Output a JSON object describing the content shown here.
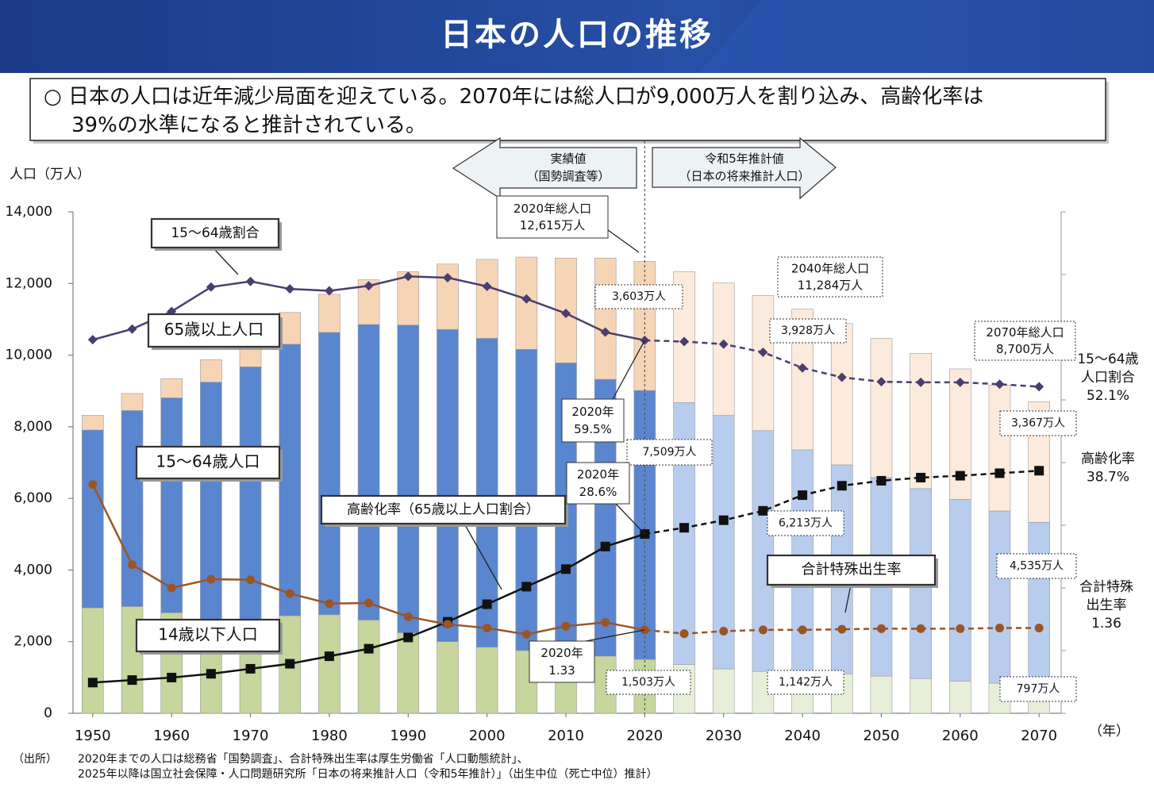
{
  "chart_data": {
    "type": "bar",
    "title": "日本の人口の推移",
    "subtitle": "○ 日本の人口は近年減少局面を迎えている。2070年には総人口が9,000万人を割り込み、高齢化率は\n39%の水準になると推計されている。",
    "y_label": "人口（万人）",
    "x_label": "（年）",
    "x": [
      1950,
      1955,
      1960,
      1965,
      1970,
      1975,
      1980,
      1985,
      1990,
      1995,
      2000,
      2005,
      2010,
      2015,
      2020,
      2025,
      2030,
      2035,
      2040,
      2045,
      2050,
      2055,
      2060,
      2065,
      2070
    ],
    "xlim": [
      1947.5,
      2072.8
    ],
    "xticks": [
      1950,
      1960,
      1970,
      1980,
      1990,
      2000,
      2010,
      2020,
      2030,
      2040,
      2050,
      2060,
      2070
    ],
    "ylim": [
      0,
      14000
    ],
    "yticks": [
      0,
      {
        "value": 2000,
        "label": "2,000"
      },
      {
        "value": 4000,
        "label": "4,000"
      },
      {
        "value": 6000,
        "label": "6,000"
      },
      {
        "value": 8000,
        "label": "8,000"
      },
      {
        "value": 10000,
        "label": "10,000"
      },
      {
        "value": 12000,
        "label": "12,000"
      },
      {
        "value": 14000,
        "label": "14,000"
      }
    ],
    "y2lim": [
      0,
      80
    ],
    "y2ticks": [
      0,
      10,
      20,
      30,
      40,
      50,
      60,
      70,
      80
    ],
    "y3lim": [
      0,
      8
    ],
    "projection_start": 2020,
    "series": [
      {
        "name": "14歳以下人口",
        "type": "bar",
        "color": "#c6d69c",
        "projection_color": "#e8efd9",
        "values": [
          2943,
          2980,
          2807,
          2553,
          2515,
          2722,
          2751,
          2603,
          2249,
          2001,
          1847,
          1752,
          1680,
          1595,
          1503,
          1363,
          1240,
          1169,
          1142,
          1103,
          1041,
          971,
          893,
          840,
          797
        ],
        "value_labels": [
          null,
          null,
          null,
          null,
          null,
          null,
          null,
          null,
          null,
          null,
          null,
          null,
          null,
          null,
          "1,503万人",
          null,
          null,
          null,
          "1,142万人",
          null,
          null,
          null,
          null,
          null,
          "797万人"
        ]
      },
      {
        "name": "15～64歳人口",
        "type": "bar",
        "color": "#5a86cf",
        "projection_color": "#b8cced",
        "values": [
          4966,
          5473,
          6000,
          6693,
          7157,
          7581,
          7883,
          8251,
          8590,
          8716,
          8622,
          8409,
          8103,
          7728,
          7509,
          7310,
          7076,
          6722,
          6213,
          5832,
          5540,
          5302,
          5078,
          4809,
          4535
        ],
        "value_labels": [
          null,
          null,
          null,
          null,
          null,
          null,
          null,
          null,
          null,
          null,
          null,
          null,
          null,
          null,
          "7,509万人",
          null,
          null,
          null,
          "6,213万人",
          null,
          null,
          null,
          null,
          null,
          "4,535万人"
        ]
      },
      {
        "name": "65歳以上人口",
        "type": "bar",
        "color": "#f6d5b6",
        "projection_color": "#fcebdc",
        "values": [
          411,
          475,
          535,
          624,
          739,
          887,
          1065,
          1247,
          1489,
          1826,
          2204,
          2576,
          2925,
          3387,
          3603,
          3653,
          3696,
          3773,
          3928,
          3945,
          3888,
          3776,
          3644,
          3508,
          3367
        ],
        "value_labels": [
          null,
          null,
          null,
          null,
          null,
          null,
          null,
          null,
          null,
          null,
          null,
          null,
          null,
          null,
          "3,603万人",
          null,
          null,
          null,
          "3,928万人",
          null,
          null,
          null,
          null,
          null,
          "3,367万人"
        ]
      },
      {
        "name": "15～64歳割合",
        "type": "line",
        "axis": "y2",
        "marker": "diamond",
        "color": "#4b3d6e",
        "values": [
          59.6,
          61.3,
          64.1,
          68.0,
          68.9,
          67.7,
          67.4,
          68.2,
          69.7,
          69.5,
          68.1,
          66.1,
          63.8,
          60.8,
          59.5,
          59.3,
          58.9,
          57.6,
          55.1,
          53.6,
          52.9,
          52.8,
          52.8,
          52.5,
          52.1
        ],
        "value_labels": [
          null,
          null,
          null,
          null,
          null,
          null,
          null,
          null,
          null,
          null,
          null,
          null,
          null,
          null,
          "2020年\n59.5%",
          null,
          null,
          null,
          null,
          null,
          null,
          null,
          null,
          null,
          "15～64歳\n人口割合\n52.1%"
        ]
      },
      {
        "name": "高齢化率（65歳以上人口割合）",
        "type": "line",
        "axis": "y2",
        "marker": "square",
        "color": "#111111",
        "values": [
          4.9,
          5.3,
          5.7,
          6.3,
          7.1,
          7.9,
          9.1,
          10.3,
          12.1,
          14.6,
          17.4,
          20.2,
          23.0,
          26.6,
          28.6,
          29.6,
          30.8,
          32.3,
          34.8,
          36.3,
          37.1,
          37.6,
          37.9,
          38.3,
          38.7
        ],
        "value_labels": [
          null,
          null,
          null,
          null,
          null,
          null,
          null,
          null,
          null,
          null,
          null,
          null,
          null,
          null,
          "2020年\n28.6%",
          null,
          null,
          null,
          null,
          null,
          null,
          null,
          null,
          null,
          "高齢化率\n38.7%"
        ]
      },
      {
        "name": "合計特殊出生率",
        "type": "line",
        "axis": "y3",
        "marker": "circle",
        "color": "#9a5526",
        "values": [
          3.65,
          2.37,
          2.0,
          2.14,
          2.13,
          1.91,
          1.75,
          1.76,
          1.54,
          1.42,
          1.36,
          1.26,
          1.39,
          1.45,
          1.33,
          1.27,
          1.31,
          1.33,
          1.33,
          1.34,
          1.35,
          1.35,
          1.35,
          1.36,
          1.36
        ],
        "value_labels": [
          null,
          null,
          null,
          null,
          null,
          null,
          null,
          null,
          null,
          null,
          null,
          null,
          null,
          null,
          "2020年\n1.33",
          null,
          null,
          null,
          null,
          null,
          null,
          null,
          null,
          null,
          "合計特殊\n出生率\n1.36"
        ]
      }
    ],
    "annotations": [
      "2020年総人口\n12,615万人",
      "2040年総人口\n11,284万人",
      "2070年総人口\n8,700万人",
      "実績値\n（国勢調査等）",
      "令和5年推計値\n（日本の将来推計人口）"
    ],
    "source_label": "（出所）",
    "source": "2020年までの人口は総務省「国勢調査」、合計特殊出生率は厚生労働省「人口動態統計」、\n2025年以降は国立社会保障・人口問題研究所「日本の将来推計人口（令和5年推計）」（出生中位（死亡中位）推計）"
  }
}
